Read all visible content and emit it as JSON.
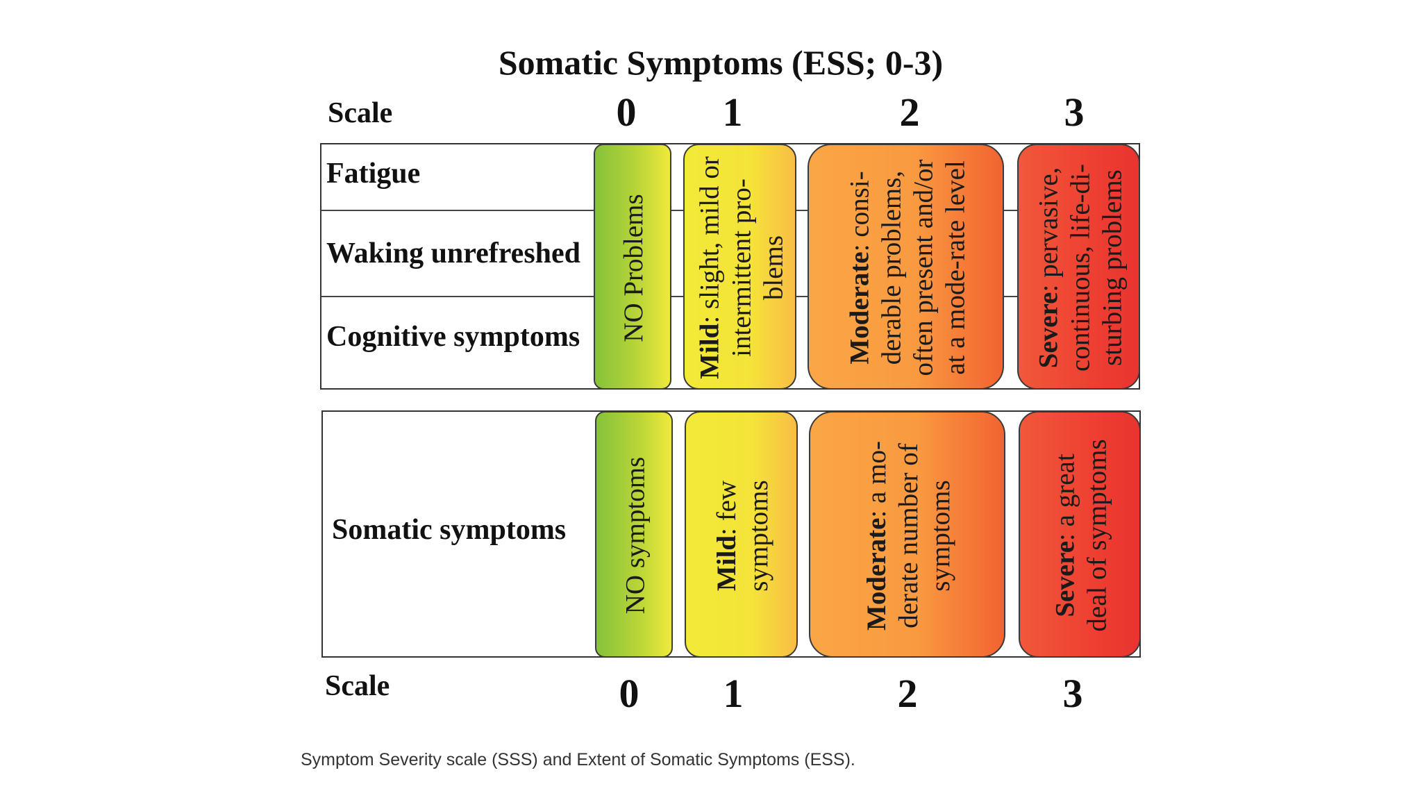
{
  "title": "Somatic Symptoms (ESS; 0-3)",
  "scale_label_top": "Scale",
  "scale_label_bottom": "Scale",
  "scale_values": [
    "0",
    "1",
    "2",
    "3"
  ],
  "upper_section": {
    "rows": [
      "Fatigue",
      "Waking unrefreshed",
      "Cognitive symptoms"
    ],
    "levels": [
      {
        "term": "",
        "description": "NO Problems",
        "color": "#86c23a"
      },
      {
        "term": "Mild",
        "description": ": slight, mild or intermittent pro-blems",
        "color": "#f2ea37"
      },
      {
        "term": "Moderate",
        "description": ": consi-derable problems, often present and/or at a mode-rate level",
        "color": "#f99a40"
      },
      {
        "term": "Severe",
        "description": ": pervasive, continuous, life-di-sturbing problems",
        "color": "#ee4032"
      }
    ]
  },
  "lower_section": {
    "row": "Somatic symptoms",
    "levels": [
      {
        "term": "",
        "description": "NO symptoms",
        "color": "#86c23a"
      },
      {
        "term": "Mild",
        "description": ": few symptoms",
        "color": "#f2ea37"
      },
      {
        "term": "Moderate",
        "description": ": a mo-derate number of symptoms",
        "color": "#f99a40"
      },
      {
        "term": "Severe",
        "description": ": a great deal of symptoms",
        "color": "#ee4032"
      }
    ]
  },
  "caption": "Symptom Severity scale (SSS) and Extent of Somatic Symptoms (ESS)."
}
